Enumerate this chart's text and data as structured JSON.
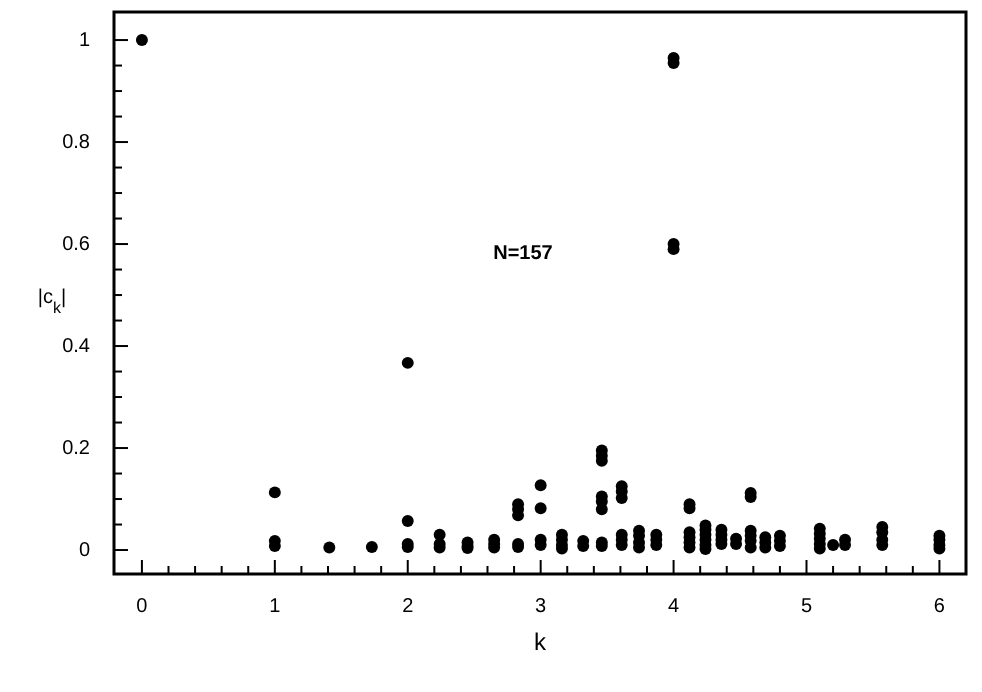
{
  "chart_data": {
    "type": "scatter",
    "xlabel": "k",
    "ylabel": "|c$_{k}$|",
    "marker": "circle",
    "grid": false,
    "xlim": [
      -0.21,
      6.2
    ],
    "ylim": [
      -0.047,
      1.055
    ],
    "xticks": [
      0,
      1,
      2,
      3,
      4,
      5,
      6
    ],
    "yticks": [
      0,
      0.2,
      0.4,
      0.6,
      0.8,
      1
    ],
    "annotations": [
      "N=157"
    ],
    "series": [
      {
        "color": "#000000",
        "x": [
          0,
          1,
          1,
          1,
          1.41,
          1.73,
          2,
          2,
          2,
          2,
          2.24,
          2.24,
          2.24,
          2.45,
          2.45,
          2.45,
          2.65,
          2.65,
          2.65,
          2.83,
          2.83,
          2.83,
          2.83,
          2.83,
          3,
          3,
          3,
          3,
          3.16,
          3.16,
          3.16,
          3.16,
          3.32,
          3.32,
          3.46,
          3.46,
          3.46,
          3.46,
          3.46,
          3.46,
          3.46,
          3.46,
          3.61,
          3.61,
          3.61,
          3.61,
          3.61,
          3.61,
          3.74,
          3.74,
          3.74,
          3.74,
          3.87,
          3.87,
          3.87,
          4,
          4,
          4,
          4,
          4.12,
          4.12,
          4.12,
          4.12,
          4.12,
          4.12,
          4.24,
          4.24,
          4.24,
          4.24,
          4.24,
          4.24,
          4.36,
          4.36,
          4.36,
          4.36,
          4.47,
          4.47,
          4.58,
          4.58,
          4.58,
          4.58,
          4.58,
          4.58,
          4.69,
          4.69,
          4.69,
          4.8,
          4.8,
          4.8,
          5.1,
          5.1,
          5.1,
          5.1,
          5.1,
          5.2,
          5.29,
          5.29,
          5.57,
          5.57,
          5.57,
          5.57,
          6,
          6,
          6,
          6
        ],
        "values": [
          1,
          0.113,
          0.018,
          0.008,
          0.005,
          0.006,
          0.367,
          0.057,
          0.012,
          0.006,
          0.03,
          0.012,
          0.005,
          0.015,
          0.008,
          0.004,
          0.02,
          0.012,
          0.005,
          0.09,
          0.08,
          0.068,
          0.012,
          0.006,
          0.127,
          0.082,
          0.02,
          0.01,
          0.03,
          0.02,
          0.01,
          0.003,
          0.018,
          0.008,
          0.195,
          0.185,
          0.175,
          0.105,
          0.095,
          0.08,
          0.015,
          0.008,
          0.125,
          0.115,
          0.102,
          0.03,
          0.02,
          0.01,
          0.038,
          0.028,
          0.015,
          0.005,
          0.03,
          0.02,
          0.01,
          0.965,
          0.955,
          0.6,
          0.59,
          0.09,
          0.082,
          0.035,
          0.025,
          0.015,
          0.005,
          0.048,
          0.04,
          0.03,
          0.02,
          0.01,
          0.002,
          0.04,
          0.03,
          0.02,
          0.012,
          0.022,
          0.012,
          0.112,
          0.104,
          0.038,
          0.028,
          0.018,
          0.005,
          0.025,
          0.015,
          0.005,
          0.028,
          0.018,
          0.008,
          0.042,
          0.032,
          0.022,
          0.012,
          0.003,
          0.01,
          0.02,
          0.01,
          0.045,
          0.035,
          0.02,
          0.01,
          0.028,
          0.02,
          0.01,
          0.003
        ]
      }
    ]
  }
}
